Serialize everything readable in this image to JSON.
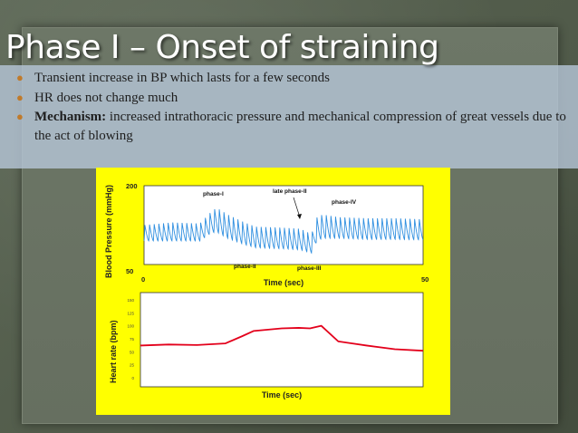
{
  "slide": {
    "title": "Phase I – Onset of straining",
    "bullets": [
      {
        "text": "Transient increase in BP which lasts for a few seconds"
      },
      {
        "text": "HR does not change much"
      },
      {
        "bold": "Mechanism:",
        "text": " increased intrathoracic pressure and mechanical compression of great vessels due to the act of blowing"
      }
    ]
  },
  "figure": {
    "bp_chart": {
      "ylabel": "Blood Pressure (mmHg)",
      "xlabel": "Time (sec)",
      "y_ticks": [
        "200",
        "50"
      ],
      "x_ticks": [
        "0",
        "50"
      ],
      "annotations": [
        "phase-I",
        "late phase-II",
        "phase-IV",
        "phase-II",
        "phase-III"
      ]
    },
    "hr_chart": {
      "ylabel": "Heart rate (bpm)",
      "xlabel": "Time (sec)",
      "y_ticks": [
        "150",
        "125",
        "100",
        "75",
        "50",
        "25",
        "0"
      ]
    }
  },
  "colors": {
    "figure_bg": "#ffff00",
    "bp_trace": "#2f8fe0",
    "hr_trace": "#e3001b",
    "bullet_marker": "#c07a2a"
  },
  "chart_data": [
    {
      "type": "line",
      "title": "",
      "xlabel": "Time (sec)",
      "ylabel": "Blood Pressure (mmHg)",
      "xlim": [
        0,
        50
      ],
      "ylim": [
        50,
        200
      ],
      "series": [
        {
          "x": [
            0,
            5,
            10,
            12,
            13,
            15,
            18,
            20,
            25,
            28,
            30,
            31,
            32,
            35,
            40,
            45,
            50
          ],
          "y_systolic": [
            125,
            130,
            128,
            150,
            158,
            145,
            130,
            122,
            120,
            118,
            108,
            140,
            145,
            140,
            138,
            138,
            136
          ],
          "y_diastolic": [
            95,
            95,
            95,
            110,
            112,
            100,
            88,
            82,
            80,
            78,
            72,
            95,
            100,
            100,
            98,
            98,
            97
          ]
        }
      ]
    },
    {
      "type": "line",
      "title": "",
      "xlabel": "Time (sec)",
      "ylabel": "Heart rate (bpm)",
      "ylim": [
        0,
        150
      ],
      "series": [
        {
          "x": [
            0,
            5,
            10,
            15,
            18,
            20,
            25,
            28,
            30,
            32,
            35,
            40,
            45,
            50
          ],
          "y": [
            62,
            64,
            63,
            66,
            80,
            90,
            95,
            96,
            95,
            100,
            70,
            62,
            55,
            52
          ]
        }
      ]
    }
  ]
}
